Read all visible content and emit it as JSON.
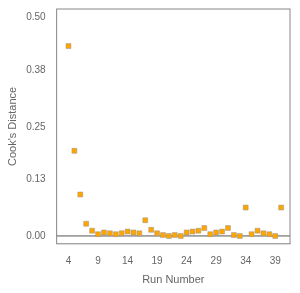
{
  "chart_data": {
    "type": "scatter",
    "x_label": "Run Number",
    "y_label": "Cook's Distance",
    "x": [
      4,
      5,
      6,
      7,
      8,
      9,
      10,
      11,
      12,
      13,
      14,
      15,
      16,
      17,
      18,
      19,
      20,
      21,
      22,
      23,
      24,
      25,
      26,
      27,
      28,
      29,
      30,
      31,
      32,
      33,
      34,
      35,
      36,
      37,
      38,
      39,
      40
    ],
    "values": [
      0.435,
      0.195,
      0.095,
      0.028,
      0.012,
      0.004,
      0.008,
      0.006,
      0.004,
      0.006,
      0.01,
      0.008,
      0.006,
      0.036,
      0.014,
      0.006,
      0.002,
      0.0,
      0.002,
      0.0,
      0.008,
      0.01,
      0.012,
      0.018,
      0.004,
      0.008,
      0.01,
      0.018,
      0.002,
      0.0,
      0.065,
      0.004,
      0.012,
      0.006,
      0.004,
      0.0,
      0.065
    ],
    "color": "#FFA500",
    "marker": "square",
    "hline": 0.0,
    "xlim": [
      2.0,
      41.5
    ],
    "ylim": [
      -0.018,
      0.52
    ],
    "xticks": [
      4,
      9,
      14,
      19,
      24,
      29,
      34,
      39
    ],
    "yticks": [
      {
        "value": 0.0,
        "label": "0.00"
      },
      0.13,
      0.25,
      0.38,
      {
        "value": 0.5,
        "label": "0.50"
      }
    ],
    "grid": false
  }
}
